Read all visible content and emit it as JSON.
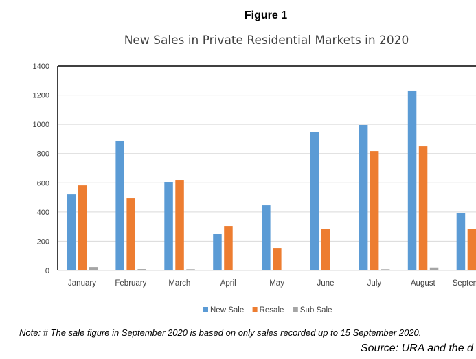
{
  "figure_label": "Figure 1",
  "note": "Note: # The sale figure in September 2020 is based on only sales recorded up to 15 September 2020.",
  "source": "Source: URA and the d",
  "chart_data": {
    "type": "bar",
    "title": "New Sales in Private Residential Markets in 2020",
    "xlabel": "",
    "ylabel": "",
    "ylim": [
      0,
      1400
    ],
    "yticks": [
      0,
      200,
      400,
      600,
      800,
      1000,
      1200,
      1400
    ],
    "grid": true,
    "legend_position": "bottom",
    "categories": [
      "January",
      "February",
      "March",
      "April",
      "May",
      "June",
      "July",
      "August",
      "September"
    ],
    "series": [
      {
        "name": "New Sale",
        "color": "#5b9bd5",
        "values": [
          521,
          888,
          606,
          249,
          446,
          949,
          996,
          1231,
          390
        ]
      },
      {
        "name": "Resale",
        "color": "#ed7d31",
        "values": [
          582,
          493,
          620,
          305,
          150,
          282,
          817,
          850,
          282
        ]
      },
      {
        "name": "Sub Sale",
        "color": "#a5a5a5",
        "values": [
          23,
          9,
          8,
          3,
          3,
          3,
          8,
          20,
          0
        ]
      }
    ]
  }
}
